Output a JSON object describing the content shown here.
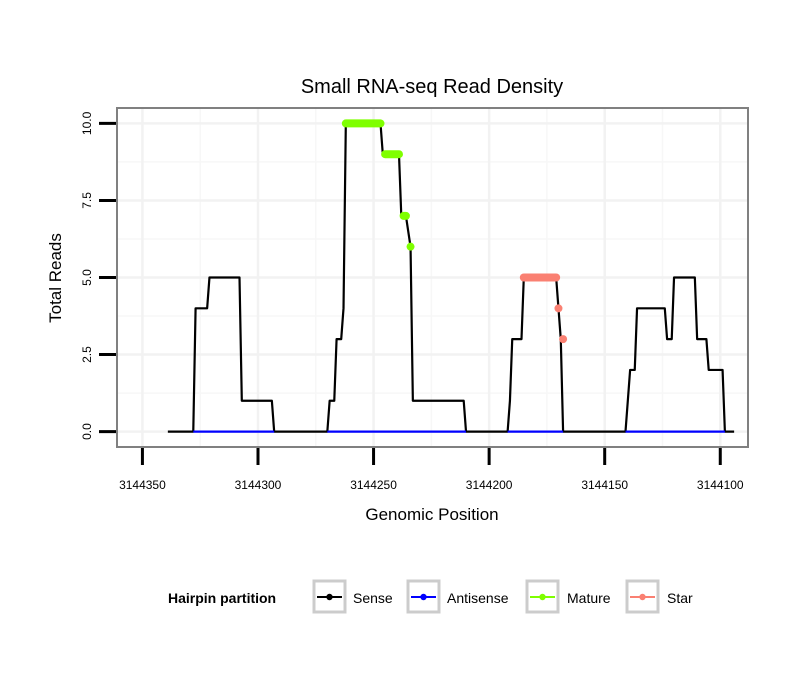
{
  "chart_data": {
    "type": "line",
    "title": "Small RNA-seq Read Density",
    "xlabel": "Genomic Position",
    "ylabel": "Total Reads",
    "x_reversed": true,
    "xlim": [
      3144361,
      3144088
    ],
    "ylim": [
      -0.5,
      10.5
    ],
    "x_ticks": [
      3144350,
      3144300,
      3144250,
      3144200,
      3144150,
      3144100
    ],
    "x_tick_labels": [
      "3144350",
      "3144300",
      "3144250",
      "3144200",
      "3144150",
      "3144100"
    ],
    "y_ticks": [
      0,
      2.5,
      5,
      7.5,
      10
    ],
    "y_tick_labels": [
      "0.0",
      "2.5",
      "5.0",
      "7.5",
      "10.0"
    ],
    "grid": true,
    "legend": {
      "title": "Hairpin partition",
      "placement": "bottom",
      "entries": [
        {
          "name": "Sense",
          "color": "#000000"
        },
        {
          "name": "Antisense",
          "color": "#0000ff"
        },
        {
          "name": "Mature",
          "color": "#7fff00"
        },
        {
          "name": "Star",
          "color": "#fa8072"
        }
      ]
    },
    "series": [
      {
        "name": "Sense",
        "color": "#000000",
        "points": [
          [
            3144339,
            0
          ],
          [
            3144328,
            0
          ],
          [
            3144327,
            4
          ],
          [
            3144322,
            4
          ],
          [
            3144321,
            5
          ],
          [
            3144308,
            5
          ],
          [
            3144307,
            1
          ],
          [
            3144294,
            1
          ],
          [
            3144293,
            0
          ],
          [
            3144270,
            0
          ],
          [
            3144269,
            1
          ],
          [
            3144267,
            1
          ],
          [
            3144266,
            3
          ],
          [
            3144264,
            3
          ],
          [
            3144263,
            4
          ],
          [
            3144262,
            10
          ],
          [
            3144247,
            10
          ],
          [
            3144246,
            9
          ],
          [
            3144239,
            9
          ],
          [
            3144238,
            7
          ],
          [
            3144236,
            7
          ],
          [
            3144234,
            6
          ],
          [
            3144233,
            1
          ],
          [
            3144211,
            1
          ],
          [
            3144210,
            0
          ],
          [
            3144192,
            0
          ],
          [
            3144191,
            1
          ],
          [
            3144190,
            3
          ],
          [
            3144186,
            3
          ],
          [
            3144185,
            5
          ],
          [
            3144171,
            5
          ],
          [
            3144170,
            4
          ],
          [
            3144169,
            3
          ],
          [
            3144168,
            0
          ],
          [
            3144141,
            0
          ],
          [
            3144140,
            1
          ],
          [
            3144139,
            2
          ],
          [
            3144137,
            2
          ],
          [
            3144136,
            4
          ],
          [
            3144124,
            4
          ],
          [
            3144123,
            3
          ],
          [
            3144121,
            3
          ],
          [
            3144120,
            5
          ],
          [
            3144111,
            5
          ],
          [
            3144110,
            3
          ],
          [
            3144106,
            3
          ],
          [
            3144105,
            2
          ],
          [
            3144099,
            2
          ],
          [
            3144098,
            0
          ],
          [
            3144094,
            0
          ]
        ]
      },
      {
        "name": "Antisense",
        "color": "#0000ff",
        "segments": [
          [
            [
              3144328,
              0
            ],
            [
              3144293,
              0
            ]
          ],
          [
            [
              3144270,
              0
            ],
            [
              3144210,
              0
            ]
          ],
          [
            [
              3144192,
              0
            ],
            [
              3144168,
              0
            ]
          ],
          [
            [
              3144141,
              0
            ],
            [
              3144098,
              0
            ]
          ]
        ]
      },
      {
        "name": "Mature",
        "color": "#7fff00",
        "segments": [
          [
            [
              3144262,
              10
            ],
            [
              3144247,
              10
            ]
          ],
          [
            [
              3144245,
              9
            ],
            [
              3144239,
              9
            ]
          ],
          [
            [
              3144237,
              7
            ],
            [
              3144236,
              7
            ]
          ],
          [
            [
              3144234,
              6
            ],
            [
              3144234,
              6
            ]
          ]
        ]
      },
      {
        "name": "Star",
        "color": "#fa8072",
        "segments": [
          [
            [
              3144185,
              5
            ],
            [
              3144171,
              5
            ]
          ],
          [
            [
              3144170,
              4
            ],
            [
              3144170,
              4
            ]
          ],
          [
            [
              3144168,
              3
            ],
            [
              3144168,
              3
            ]
          ]
        ]
      }
    ]
  }
}
